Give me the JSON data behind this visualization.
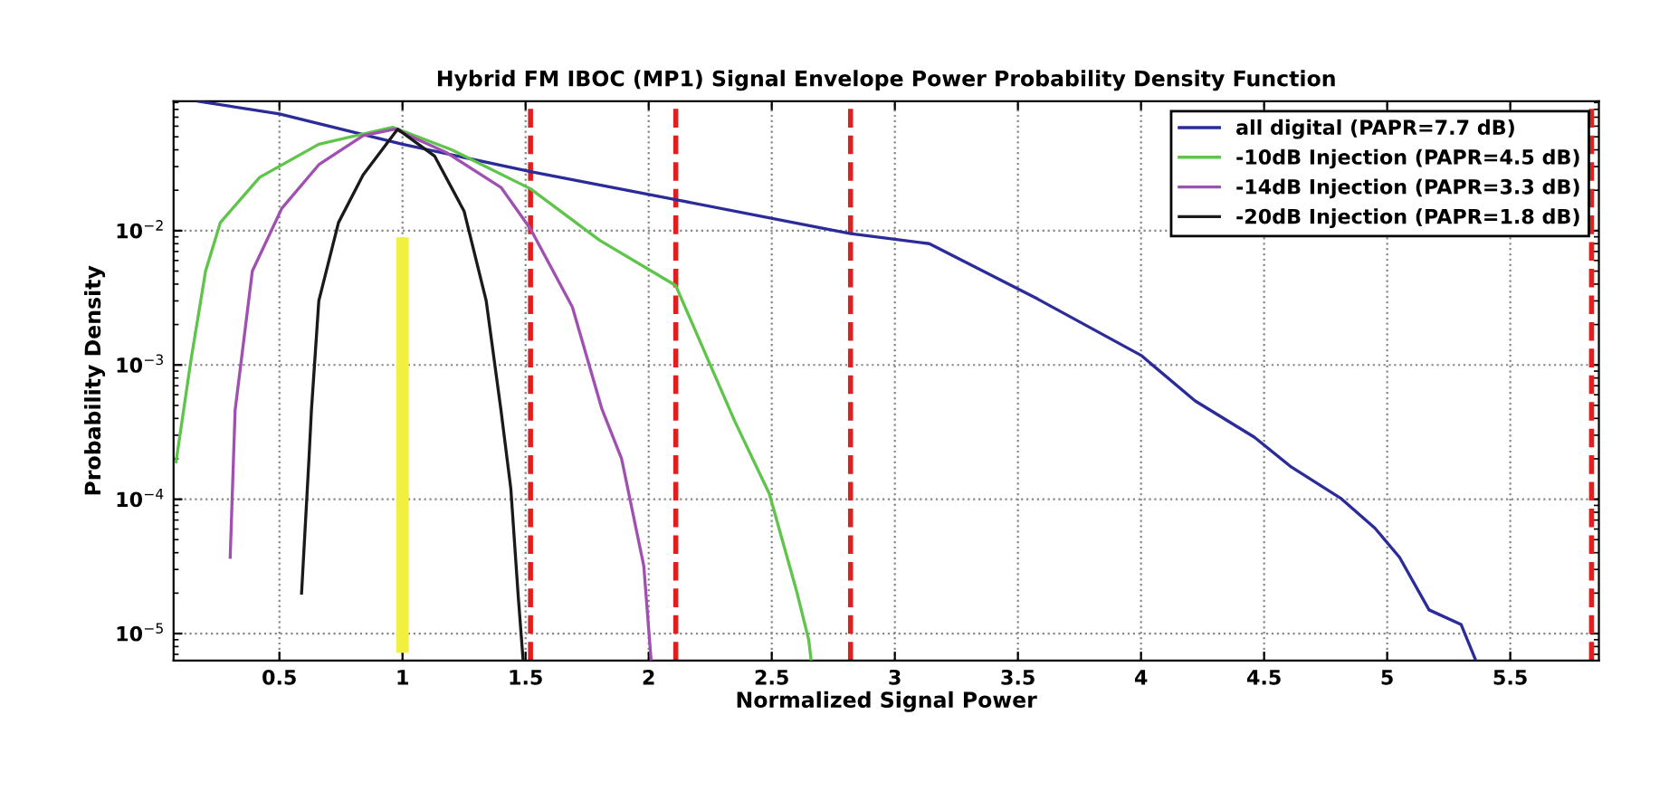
{
  "chart_data": {
    "type": "line",
    "title": "Hybrid FM IBOC (MP1) Signal Envelope Power Probability Density Function",
    "xlabel": "Normalized Signal Power",
    "ylabel": "Probability Density",
    "log": "y",
    "grid": true,
    "legend": "top right",
    "line_style": "solid",
    "marker": "none",
    "xlim": [
      0.07,
      5.86
    ],
    "ylim": [
      6.3e-06,
      0.092
    ],
    "xticks": [
      0.5,
      1,
      1.5,
      2,
      2.5,
      3,
      3.5,
      4,
      4.5,
      5,
      5.5
    ],
    "yticks": [
      {
        "value": 1e-05,
        "label": "10$^{−5}$"
      },
      {
        "value": 0.0001,
        "label": "10$^{−4}$"
      },
      {
        "value": 0.001,
        "label": "10$^{−3}$"
      },
      {
        "value": 0.01,
        "label": "10$^{−2}$"
      }
    ],
    "series": [
      {
        "name": "all digital (PAPR=7.7 dB)",
        "color": "#2b2b9a",
        "x": [
          0.17,
          0.5,
          1,
          1.52,
          2.11,
          2.82,
          3.14,
          3.58,
          4.0,
          4.22,
          4.46,
          4.61,
          4.81,
          4.95,
          5.05,
          5.17,
          5.3,
          5.36
        ],
        "values": [
          0.092,
          0.074,
          0.044,
          0.0275,
          0.017,
          0.0095,
          0.008,
          0.0031,
          0.00118,
          0.00054,
          0.00029,
          0.000174,
          0.000102,
          6.1e-05,
          3.7e-05,
          1.5e-05,
          1.17e-05,
          6.3e-06
        ]
      },
      {
        "name": "-10dB Injection (PAPR=4.5 dB)",
        "color": "#5ec44a",
        "x": [
          0.08,
          0.14,
          0.2,
          0.26,
          0.42,
          0.66,
          0.96,
          1.2,
          1.52,
          1.8,
          2.11,
          2.35,
          2.49,
          2.6,
          2.65,
          2.66
        ],
        "values": [
          0.00019,
          0.00107,
          0.005,
          0.0115,
          0.025,
          0.044,
          0.059,
          0.04,
          0.0205,
          0.0085,
          0.0039,
          0.00038,
          0.00011,
          2.1e-05,
          9e-06,
          6.3e-06
        ]
      },
      {
        "name": "-14dB Injection (PAPR=3.3 dB)",
        "color": "#a050b0",
        "x": [
          0.3,
          0.32,
          0.39,
          0.51,
          0.66,
          0.84,
          0.97,
          1.18,
          1.4,
          1.52,
          1.69,
          1.81,
          1.89,
          1.98,
          2.01
        ],
        "values": [
          3.7e-05,
          0.00046,
          0.005,
          0.0147,
          0.031,
          0.051,
          0.057,
          0.038,
          0.021,
          0.0103,
          0.0027,
          0.00047,
          0.0002,
          3.2e-05,
          6.3e-06
        ]
      },
      {
        "name": "-20dB Injection (PAPR=1.8 dB)",
        "color": "#1a1a1a",
        "x": [
          0.59,
          0.62,
          0.63,
          0.66,
          0.74,
          0.84,
          0.98,
          1.13,
          1.25,
          1.34,
          1.4,
          1.44,
          1.47,
          1.49
        ],
        "values": [
          2e-05,
          0.0002,
          0.00046,
          0.003,
          0.0115,
          0.026,
          0.057,
          0.036,
          0.014,
          0.003,
          0.00046,
          0.00012,
          1.9e-05,
          6.3e-06
        ]
      },
      {
        "color": "#f0f040",
        "x": [
          1,
          1
        ],
        "values": [
          8e-06,
          0.008
        ]
      }
    ],
    "ref_lines": [
      {
        "axis": "x",
        "value": 1.52,
        "color": "#e02020",
        "line_style": "dashed"
      },
      {
        "axis": "x",
        "value": 2.11,
        "color": "#e02020",
        "line_style": "dashed"
      },
      {
        "axis": "x",
        "value": 2.82,
        "color": "#e02020",
        "line_style": "dashed"
      },
      {
        "axis": "x",
        "value": 5.83,
        "color": "#e02020",
        "line_style": "dashed"
      }
    ]
  }
}
